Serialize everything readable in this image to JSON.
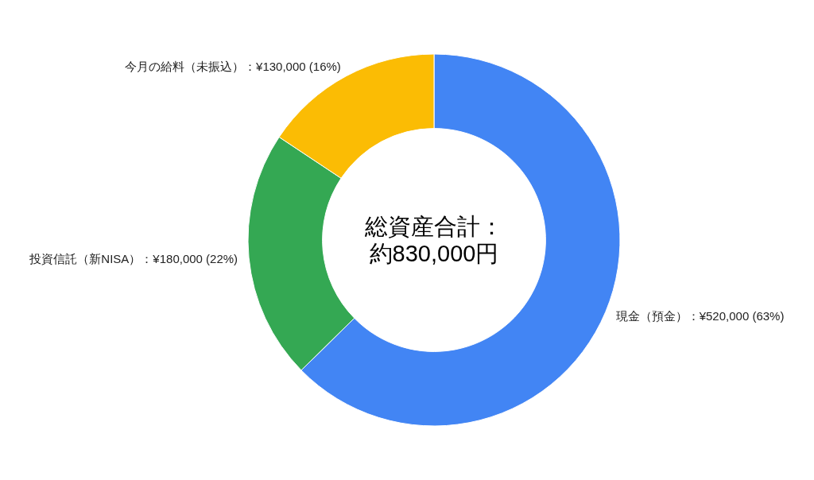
{
  "chart_data": {
    "type": "donut",
    "categories": [
      "現金（預金）",
      "投資信託（新NISA）",
      "今月の給料（未振込）"
    ],
    "values": [
      520000,
      180000,
      130000
    ],
    "colors": [
      "#4285f4",
      "#34a853",
      "#fbbc04"
    ],
    "value_labels": [
      "：¥520,000 (63%)",
      "：¥180,000 (22%)",
      "：¥130,000 (16%)"
    ],
    "annotations": [
      "総資産合計：",
      "約830,000円"
    ]
  }
}
